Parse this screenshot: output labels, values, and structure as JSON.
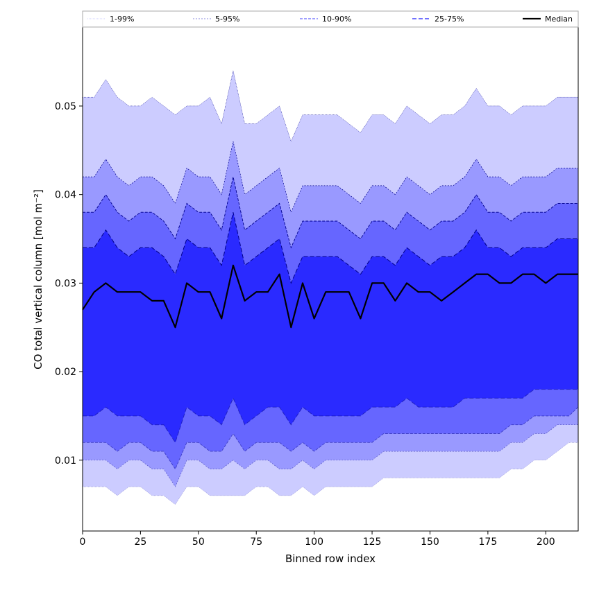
{
  "chart_data": {
    "type": "area",
    "xlabel": "Binned row index",
    "ylabel": "CO total vertical column [mol m⁻²]",
    "xlim": [
      0,
      214
    ],
    "ylim": [
      0.002,
      0.059
    ],
    "x_ticks": [
      0,
      25,
      50,
      75,
      100,
      125,
      150,
      175,
      200
    ],
    "y_ticks": [
      0.01,
      0.02,
      0.03,
      0.04,
      0.05
    ],
    "x_tick_labels": [
      "0",
      "25",
      "50",
      "75",
      "100",
      "125",
      "150",
      "175",
      "200"
    ],
    "y_tick_labels": [
      "0.01",
      "0.02",
      "0.03",
      "0.04",
      "0.05"
    ],
    "grid": false,
    "legend_position": "top",
    "colors": {
      "band_1_99": "#ccccff",
      "band_5_95": "#9999ff",
      "band_10_90": "#6666ff",
      "band_25_75": "#2a2aff",
      "median": "#000000",
      "edge": "#00008b"
    },
    "legend": [
      "1-99%",
      "5-95%",
      "10-90%",
      "25-75%",
      "Median"
    ],
    "x": [
      0,
      5,
      10,
      15,
      20,
      25,
      30,
      35,
      40,
      45,
      50,
      55,
      60,
      65,
      70,
      75,
      80,
      85,
      90,
      95,
      100,
      105,
      110,
      115,
      120,
      125,
      130,
      135,
      140,
      145,
      150,
      155,
      160,
      165,
      170,
      175,
      180,
      185,
      190,
      195,
      200,
      205,
      210,
      214
    ],
    "series": [
      {
        "name": "Median",
        "values": [
          0.027,
          0.029,
          0.03,
          0.029,
          0.029,
          0.029,
          0.028,
          0.028,
          0.025,
          0.03,
          0.029,
          0.029,
          0.026,
          0.032,
          0.028,
          0.029,
          0.029,
          0.031,
          0.025,
          0.03,
          0.026,
          0.029,
          0.029,
          0.029,
          0.026,
          0.03,
          0.03,
          0.028,
          0.03,
          0.029,
          0.029,
          0.028,
          0.029,
          0.03,
          0.031,
          0.031,
          0.03,
          0.03,
          0.031,
          0.031,
          0.03,
          0.031,
          0.031,
          0.031
        ]
      },
      {
        "name": "1-99%",
        "upper": [
          0.051,
          0.051,
          0.053,
          0.051,
          0.05,
          0.05,
          0.051,
          0.05,
          0.049,
          0.05,
          0.05,
          0.051,
          0.048,
          0.054,
          0.048,
          0.048,
          0.049,
          0.05,
          0.046,
          0.049,
          0.049,
          0.049,
          0.049,
          0.048,
          0.047,
          0.049,
          0.049,
          0.048,
          0.05,
          0.049,
          0.048,
          0.049,
          0.049,
          0.05,
          0.052,
          0.05,
          0.05,
          0.049,
          0.05,
          0.05,
          0.05,
          0.051,
          0.051,
          0.051
        ],
        "lower": [
          0.007,
          0.007,
          0.007,
          0.006,
          0.007,
          0.007,
          0.006,
          0.006,
          0.005,
          0.007,
          0.007,
          0.006,
          0.006,
          0.006,
          0.006,
          0.007,
          0.007,
          0.006,
          0.006,
          0.007,
          0.006,
          0.007,
          0.007,
          0.007,
          0.007,
          0.007,
          0.008,
          0.008,
          0.008,
          0.008,
          0.008,
          0.008,
          0.008,
          0.008,
          0.008,
          0.008,
          0.008,
          0.009,
          0.009,
          0.01,
          0.01,
          0.011,
          0.012,
          0.012
        ]
      },
      {
        "name": "5-95%",
        "upper": [
          0.042,
          0.042,
          0.044,
          0.042,
          0.041,
          0.042,
          0.042,
          0.041,
          0.039,
          0.043,
          0.042,
          0.042,
          0.04,
          0.046,
          0.04,
          0.041,
          0.042,
          0.043,
          0.038,
          0.041,
          0.041,
          0.041,
          0.041,
          0.04,
          0.039,
          0.041,
          0.041,
          0.04,
          0.042,
          0.041,
          0.04,
          0.041,
          0.041,
          0.042,
          0.044,
          0.042,
          0.042,
          0.041,
          0.042,
          0.042,
          0.042,
          0.043,
          0.043,
          0.043
        ],
        "lower": [
          0.01,
          0.01,
          0.01,
          0.009,
          0.01,
          0.01,
          0.009,
          0.009,
          0.007,
          0.01,
          0.01,
          0.009,
          0.009,
          0.01,
          0.009,
          0.01,
          0.01,
          0.009,
          0.009,
          0.01,
          0.009,
          0.01,
          0.01,
          0.01,
          0.01,
          0.01,
          0.011,
          0.011,
          0.011,
          0.011,
          0.011,
          0.011,
          0.011,
          0.011,
          0.011,
          0.011,
          0.011,
          0.012,
          0.012,
          0.013,
          0.013,
          0.014,
          0.014,
          0.014
        ]
      },
      {
        "name": "10-90%",
        "upper": [
          0.038,
          0.038,
          0.04,
          0.038,
          0.037,
          0.038,
          0.038,
          0.037,
          0.035,
          0.039,
          0.038,
          0.038,
          0.036,
          0.042,
          0.036,
          0.037,
          0.038,
          0.039,
          0.034,
          0.037,
          0.037,
          0.037,
          0.037,
          0.036,
          0.035,
          0.037,
          0.037,
          0.036,
          0.038,
          0.037,
          0.036,
          0.037,
          0.037,
          0.038,
          0.04,
          0.038,
          0.038,
          0.037,
          0.038,
          0.038,
          0.038,
          0.039,
          0.039,
          0.039
        ],
        "lower": [
          0.012,
          0.012,
          0.012,
          0.011,
          0.012,
          0.012,
          0.011,
          0.011,
          0.009,
          0.012,
          0.012,
          0.011,
          0.011,
          0.013,
          0.011,
          0.012,
          0.012,
          0.012,
          0.011,
          0.012,
          0.011,
          0.012,
          0.012,
          0.012,
          0.012,
          0.012,
          0.013,
          0.013,
          0.013,
          0.013,
          0.013,
          0.013,
          0.013,
          0.013,
          0.013,
          0.013,
          0.013,
          0.014,
          0.014,
          0.015,
          0.015,
          0.015,
          0.015,
          0.016
        ]
      },
      {
        "name": "25-75%",
        "upper": [
          0.034,
          0.034,
          0.036,
          0.034,
          0.033,
          0.034,
          0.034,
          0.033,
          0.031,
          0.035,
          0.034,
          0.034,
          0.032,
          0.038,
          0.032,
          0.033,
          0.034,
          0.035,
          0.03,
          0.033,
          0.033,
          0.033,
          0.033,
          0.032,
          0.031,
          0.033,
          0.033,
          0.032,
          0.034,
          0.033,
          0.032,
          0.033,
          0.033,
          0.034,
          0.036,
          0.034,
          0.034,
          0.033,
          0.034,
          0.034,
          0.034,
          0.035,
          0.035,
          0.035
        ],
        "lower": [
          0.015,
          0.015,
          0.016,
          0.015,
          0.015,
          0.015,
          0.014,
          0.014,
          0.012,
          0.016,
          0.015,
          0.015,
          0.014,
          0.017,
          0.014,
          0.015,
          0.016,
          0.016,
          0.014,
          0.016,
          0.015,
          0.015,
          0.015,
          0.015,
          0.015,
          0.016,
          0.016,
          0.016,
          0.017,
          0.016,
          0.016,
          0.016,
          0.016,
          0.017,
          0.017,
          0.017,
          0.017,
          0.017,
          0.017,
          0.018,
          0.018,
          0.018,
          0.018,
          0.018
        ]
      }
    ]
  }
}
